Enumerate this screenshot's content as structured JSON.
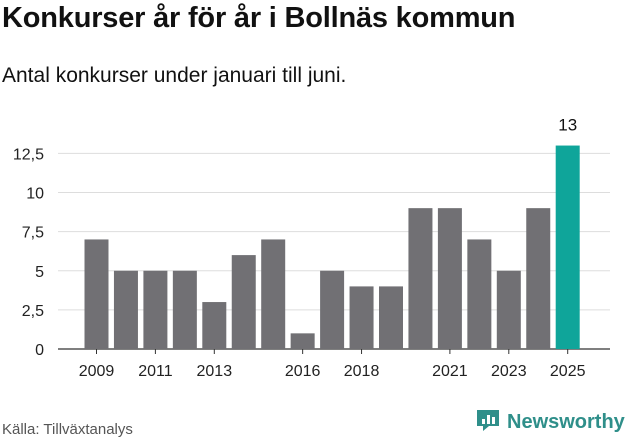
{
  "title": "Konkurser år för år i Bollnäs kommun",
  "subtitle": "Antal konkurser under januari till juni.",
  "source": "Källa: Tillväxtanalys",
  "brand": {
    "name": "Newsworthy",
    "icon": "bar-chart-logo-icon",
    "color": "#2f8f8a"
  },
  "chart_data": {
    "type": "bar",
    "title": "",
    "xlabel": "",
    "ylabel": "",
    "categories": [
      "2009",
      "2010",
      "2011",
      "2012",
      "2013",
      "2014",
      "2015",
      "2016",
      "2017",
      "2018",
      "2019",
      "2020",
      "2021",
      "2022",
      "2023",
      "2024",
      "2025"
    ],
    "values": [
      7,
      5,
      5,
      5,
      3,
      6,
      7,
      1,
      5,
      4,
      4,
      9,
      9,
      7,
      5,
      9,
      13
    ],
    "x_tick_labels": [
      "2009",
      "2011",
      "2013",
      "2016",
      "2018",
      "2021",
      "2023",
      "2025"
    ],
    "y_ticks": [
      0,
      2.5,
      5,
      7.5,
      10,
      12.5
    ],
    "y_tick_labels": [
      "0",
      "2,5",
      "5",
      "7,5",
      "10",
      "12,5"
    ],
    "ylim": [
      0,
      13
    ],
    "grid": true,
    "legend": "none",
    "highlight_index": 16,
    "data_labels": [
      {
        "index": 16,
        "text": "13"
      }
    ],
    "colors": {
      "bar": "#717074",
      "highlight": "#0fa59a",
      "grid": "#dddddd"
    }
  }
}
